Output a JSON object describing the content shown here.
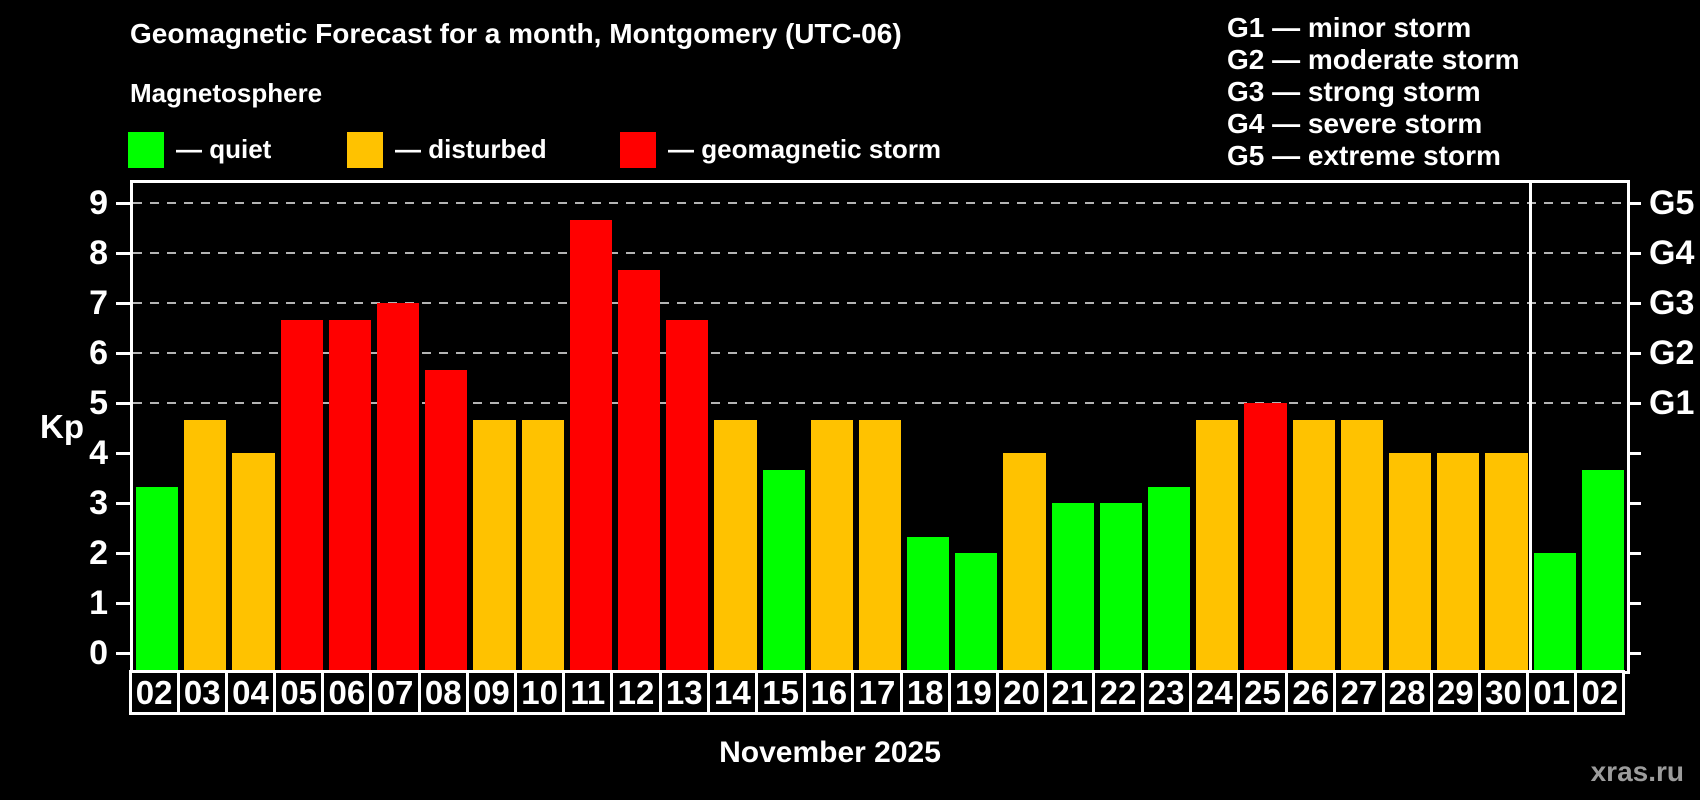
{
  "title": "Geomagnetic Forecast for a month, Montgomery (UTC-06)",
  "subtitle": "Magnetosphere",
  "condition_legend": {
    "items": [
      {
        "key": "quiet",
        "label": "— quiet",
        "color": "#00ff00"
      },
      {
        "key": "disturbed",
        "label": "— disturbed",
        "color": "#ffc200"
      },
      {
        "key": "storm",
        "label": "— geomagnetic storm",
        "color": "#ff0000"
      }
    ]
  },
  "storm_scale_legend": {
    "lines": [
      "G1 — minor storm",
      "G2 — moderate storm",
      "G3 — strong storm",
      "G4 — severe storm",
      "G5 — extreme storm"
    ]
  },
  "axes": {
    "y_title": "Kp",
    "y_ticks": [
      0,
      1,
      2,
      3,
      4,
      5,
      6,
      7,
      8,
      9
    ],
    "right_scale": [
      {
        "kp": 5,
        "label": "G1"
      },
      {
        "kp": 6,
        "label": "G2"
      },
      {
        "kp": 7,
        "label": "G3"
      },
      {
        "kp": 8,
        "label": "G4"
      },
      {
        "kp": 9,
        "label": "G5"
      }
    ],
    "x_caption": "November 2025"
  },
  "watermark": "xras.ru",
  "chart_data": {
    "type": "bar",
    "title": "Geomagnetic Forecast for a month, Montgomery (UTC-06)",
    "ylabel": "Kp",
    "ylim": [
      0,
      9.4
    ],
    "grid": "horizontal dashed lines at Kp 5 through 9 (G1-G5 levels)",
    "gridline_kp": [
      5,
      6,
      7,
      8,
      9
    ],
    "legend_position": "top-left",
    "categories": [
      "02",
      "03",
      "04",
      "05",
      "06",
      "07",
      "08",
      "09",
      "10",
      "11",
      "12",
      "13",
      "14",
      "15",
      "16",
      "17",
      "18",
      "19",
      "20",
      "21",
      "22",
      "23",
      "24",
      "25",
      "26",
      "27",
      "28",
      "29",
      "30",
      "01",
      "02"
    ],
    "values": [
      3.33,
      4.67,
      4.0,
      6.67,
      6.67,
      7.0,
      5.67,
      4.67,
      4.67,
      8.67,
      7.67,
      6.67,
      4.67,
      3.67,
      4.67,
      4.67,
      2.33,
      2.0,
      4.0,
      3.0,
      3.0,
      3.33,
      4.67,
      5.0,
      4.67,
      4.67,
      4.0,
      4.0,
      4.0,
      2.0,
      3.67
    ],
    "statuses": [
      "quiet",
      "disturbed",
      "disturbed",
      "storm",
      "storm",
      "storm",
      "storm",
      "disturbed",
      "disturbed",
      "storm",
      "storm",
      "storm",
      "disturbed",
      "quiet",
      "disturbed",
      "disturbed",
      "quiet",
      "quiet",
      "disturbed",
      "quiet",
      "quiet",
      "quiet",
      "disturbed",
      "storm",
      "disturbed",
      "disturbed",
      "disturbed",
      "disturbed",
      "disturbed",
      "quiet",
      "quiet"
    ],
    "colors": {
      "quiet": "#00ff00",
      "disturbed": "#ffc200",
      "storm": "#ff0000"
    },
    "month_boundary_index": 29
  }
}
